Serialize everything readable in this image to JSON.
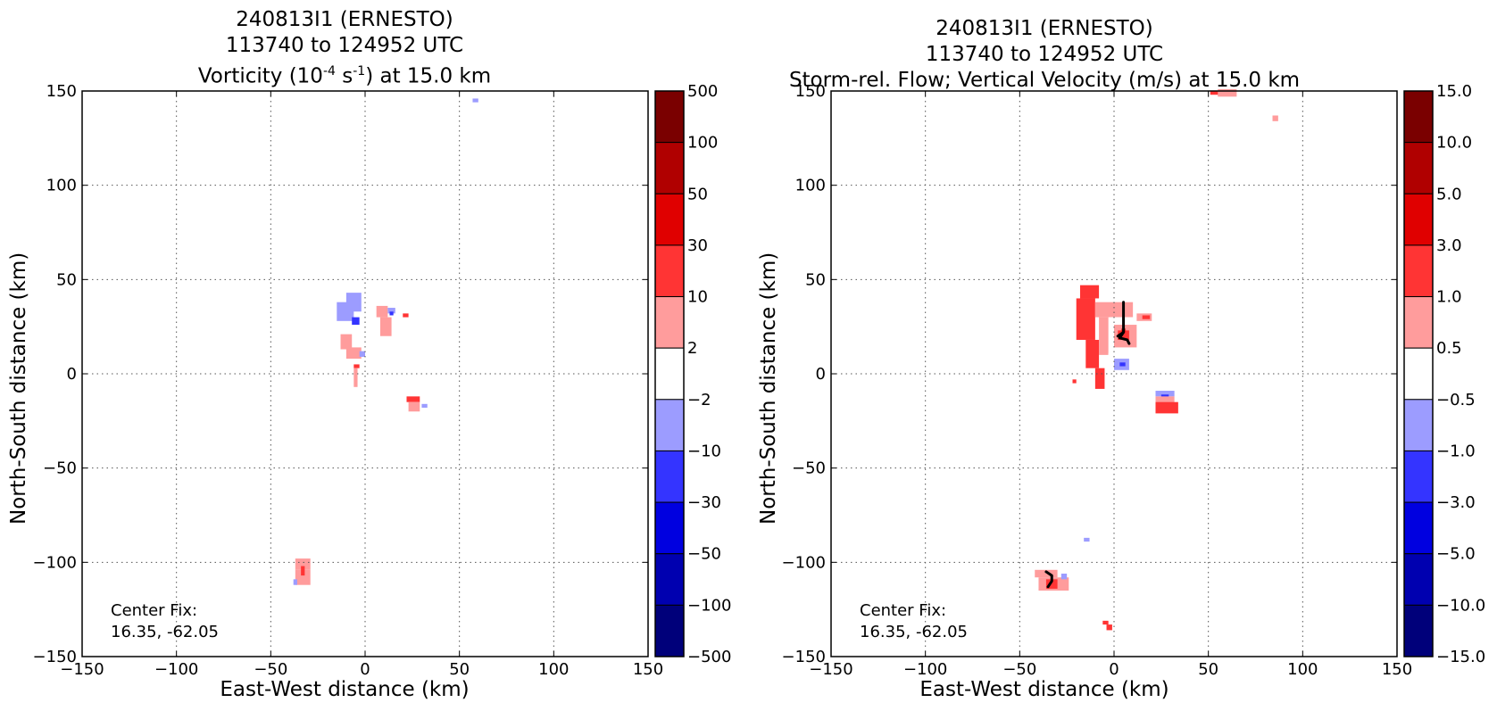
{
  "chart_data": [
    {
      "type": "heatmap",
      "title_line1": "240813I1 (ERNESTO)",
      "title_line2": "113740 to 124952 UTC",
      "title_line3": "Vorticity (10",
      "title_line3_sup1": "-4",
      "title_line3_mid": " s",
      "title_line3_sup2": "-1",
      "title_line3_end": ") at 15.0 km",
      "xlabel": "East-West distance (km)",
      "ylabel": "North-South distance (km)",
      "xlim": [
        -150,
        150
      ],
      "ylim": [
        -150,
        150
      ],
      "xticks": [
        "−150",
        "−100",
        "−50",
        "0",
        "50",
        "100",
        "150"
      ],
      "yticks": [
        "150",
        "100",
        "50",
        "0",
        "−50",
        "−100",
        "−150"
      ],
      "grid": true,
      "colorbar_labels": [
        "500",
        "100",
        "50",
        "30",
        "10",
        "2",
        "−2",
        "−10",
        "−30",
        "−50",
        "−100",
        "−500"
      ],
      "colorbar_colors": [
        "#7a0000",
        "#b00000",
        "#e00000",
        "#ff3434",
        "#ff9c9c",
        "#ffffff",
        "#9c9cff",
        "#3434ff",
        "#0000e0",
        "#0000b0",
        "#00007a"
      ],
      "annotation_line1": "Center Fix:",
      "annotation_line2": "16.35, -62.05",
      "features": [
        {
          "x": 57,
          "y": 144,
          "w": 3,
          "h": 2,
          "color": "#9c9cff"
        },
        {
          "x": -10,
          "y": 33,
          "w": 8,
          "h": 10,
          "color": "#9c9cff"
        },
        {
          "x": -15,
          "y": 28,
          "w": 9,
          "h": 10,
          "color": "#9c9cff"
        },
        {
          "x": -7,
          "y": 26,
          "w": 4,
          "h": 4,
          "color": "#3434ff"
        },
        {
          "x": 6,
          "y": 30,
          "w": 6,
          "h": 6,
          "color": "#ff9c9c"
        },
        {
          "x": 8,
          "y": 20,
          "w": 6,
          "h": 10,
          "color": "#ff9c9c"
        },
        {
          "x": 12,
          "y": 32,
          "w": 4,
          "h": 3,
          "color": "#9c9cff"
        },
        {
          "x": 13,
          "y": 31,
          "w": 2,
          "h": 2,
          "color": "#3434ff"
        },
        {
          "x": 20,
          "y": 30,
          "w": 3,
          "h": 2,
          "color": "#ff3434"
        },
        {
          "x": -13,
          "y": 13,
          "w": 6,
          "h": 8,
          "color": "#ff9c9c"
        },
        {
          "x": -10,
          "y": 8,
          "w": 8,
          "h": 6,
          "color": "#ff9c9c"
        },
        {
          "x": -3,
          "y": 9,
          "w": 3,
          "h": 3,
          "color": "#9c9cff"
        },
        {
          "x": -6,
          "y": 3,
          "w": 3,
          "h": 2,
          "color": "#ff3434"
        },
        {
          "x": -6,
          "y": -7,
          "w": 2,
          "h": 10,
          "color": "#ff9c9c"
        },
        {
          "x": 22,
          "y": -15,
          "w": 7,
          "h": 3,
          "color": "#ff3434"
        },
        {
          "x": 23,
          "y": -20,
          "w": 6,
          "h": 5,
          "color": "#ff9c9c"
        },
        {
          "x": 30,
          "y": -18,
          "w": 3,
          "h": 2,
          "color": "#9c9cff"
        },
        {
          "x": -37,
          "y": -104,
          "w": 8,
          "h": 6,
          "color": "#ff9c9c"
        },
        {
          "x": -37,
          "y": -112,
          "w": 8,
          "h": 8,
          "color": "#ff9c9c"
        },
        {
          "x": -34,
          "y": -107,
          "w": 2,
          "h": 5,
          "color": "#ff3434"
        },
        {
          "x": -38,
          "y": -112,
          "w": 2,
          "h": 3,
          "color": "#9c9cff"
        }
      ]
    },
    {
      "type": "heatmap",
      "title_line1": "240813I1 (ERNESTO)",
      "title_line2": "113740 to 124952 UTC",
      "title_line3": "Storm-rel. Flow; Vertical Velocity (m/s) at 15.0 km",
      "xlabel": "East-West distance (km)",
      "ylabel": "North-South distance (km)",
      "xlim": [
        -150,
        150
      ],
      "ylim": [
        -150,
        150
      ],
      "xticks": [
        "−150",
        "−100",
        "−50",
        "0",
        "50",
        "100",
        "150"
      ],
      "yticks": [
        "150",
        "100",
        "50",
        "0",
        "−50",
        "−100",
        "−150"
      ],
      "grid": true,
      "colorbar_labels": [
        "15.0",
        "10.0",
        "5.0",
        "3.0",
        "1.0",
        "0.5",
        "−0.5",
        "−1.0",
        "−3.0",
        "−5.0",
        "−10.0",
        "−15.0"
      ],
      "colorbar_colors": [
        "#7a0000",
        "#b00000",
        "#e00000",
        "#ff3434",
        "#ff9c9c",
        "#ffffff",
        "#9c9cff",
        "#3434ff",
        "#0000e0",
        "#0000b0",
        "#00007a"
      ],
      "annotation_line1": "Center Fix:",
      "annotation_line2": "16.35, -62.05",
      "features": [
        {
          "x": 51,
          "y": 148,
          "w": 5,
          "h": 2,
          "color": "#ff3434"
        },
        {
          "x": 55,
          "y": 147,
          "w": 10,
          "h": 4,
          "color": "#ff9c9c"
        },
        {
          "x": 84,
          "y": 134,
          "w": 3,
          "h": 3,
          "color": "#ff9c9c"
        },
        {
          "x": -18,
          "y": 40,
          "w": 10,
          "h": 7,
          "color": "#ff3434"
        },
        {
          "x": -20,
          "y": 18,
          "w": 10,
          "h": 22,
          "color": "#ff3434"
        },
        {
          "x": -15,
          "y": 3,
          "w": 7,
          "h": 15,
          "color": "#ff3434"
        },
        {
          "x": -10,
          "y": -8,
          "w": 5,
          "h": 11,
          "color": "#ff3434"
        },
        {
          "x": -10,
          "y": 30,
          "w": 20,
          "h": 8,
          "color": "#ff9c9c"
        },
        {
          "x": -8,
          "y": 10,
          "w": 5,
          "h": 20,
          "color": "#ff9c9c"
        },
        {
          "x": -2,
          "y": 20,
          "w": 12,
          "h": 10,
          "color": "#ffffff"
        },
        {
          "x": 0,
          "y": 14,
          "w": 12,
          "h": 12,
          "color": "#ff9c9c"
        },
        {
          "x": 2,
          "y": 18,
          "w": 6,
          "h": 5,
          "color": "#ff3434"
        },
        {
          "x": 4,
          "y": 22,
          "w": 2,
          "h": 2,
          "color": "#e00000"
        },
        {
          "x": -3,
          "y": 6,
          "w": 8,
          "h": 5,
          "color": "#ffffff"
        },
        {
          "x": 0,
          "y": 2,
          "w": 8,
          "h": 6,
          "color": "#9c9cff"
        },
        {
          "x": 3,
          "y": 4,
          "w": 3,
          "h": 2,
          "color": "#3434ff"
        },
        {
          "x": 12,
          "y": 28,
          "w": 8,
          "h": 4,
          "color": "#ff9c9c"
        },
        {
          "x": 15,
          "y": 29,
          "w": 4,
          "h": 2,
          "color": "#ff3434"
        },
        {
          "x": -22,
          "y": -5,
          "w": 2,
          "h": 2,
          "color": "#ff3434"
        },
        {
          "x": 22,
          "y": -12,
          "w": 10,
          "h": 3,
          "color": "#9c9cff"
        },
        {
          "x": 25,
          "y": -13,
          "w": 4,
          "h": 2,
          "color": "#3434ff"
        },
        {
          "x": 22,
          "y": -16,
          "w": 10,
          "h": 4,
          "color": "#ff9c9c"
        },
        {
          "x": 22,
          "y": -21,
          "w": 12,
          "h": 6,
          "color": "#ff3434"
        },
        {
          "x": -16,
          "y": -89,
          "w": 3,
          "h": 2,
          "color": "#9c9cff"
        },
        {
          "x": -42,
          "y": -108,
          "w": 12,
          "h": 4,
          "color": "#ff9c9c"
        },
        {
          "x": -40,
          "y": -115,
          "w": 16,
          "h": 7,
          "color": "#ff9c9c"
        },
        {
          "x": -36,
          "y": -114,
          "w": 6,
          "h": 5,
          "color": "#ff3434"
        },
        {
          "x": -28,
          "y": -109,
          "w": 3,
          "h": 3,
          "color": "#9c9cff"
        },
        {
          "x": -6,
          "y": -133,
          "w": 3,
          "h": 2,
          "color": "#ff3434"
        },
        {
          "x": -4,
          "y": -136,
          "w": 3,
          "h": 3,
          "color": "#ff3434"
        }
      ],
      "flow_lines": [
        [
          [
            5,
            38
          ],
          [
            5,
            22
          ],
          [
            3,
            19
          ],
          [
            7,
            18
          ],
          [
            8,
            16
          ]
        ],
        [
          [
            5,
            22
          ],
          [
            2,
            20
          ]
        ],
        [
          [
            -36,
            -105
          ],
          [
            -33,
            -107
          ],
          [
            -33,
            -110
          ],
          [
            -35,
            -113
          ]
        ]
      ]
    }
  ]
}
